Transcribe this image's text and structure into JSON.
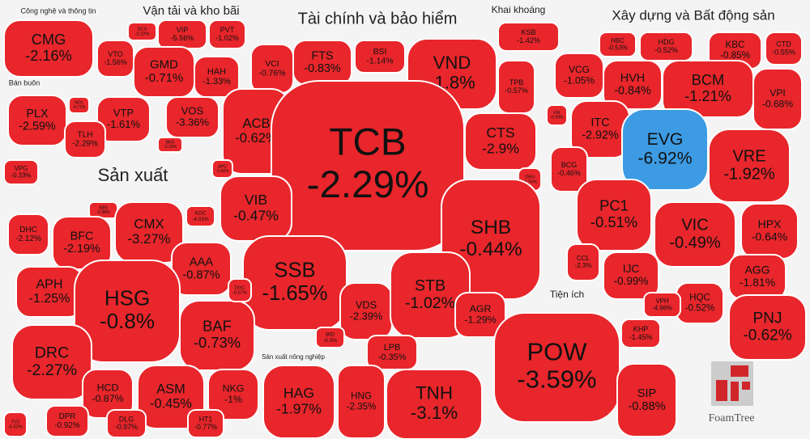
{
  "groups": [
    {
      "title": "Công nghệ và thông tin",
      "cells": [
        {
          "ticker": "CMG",
          "change": "-2.16%"
        }
      ]
    },
    {
      "title": "Vận tải và kho bãi",
      "cells": [
        {
          "ticker": "SCS",
          "change": "-2.22%"
        },
        {
          "ticker": "VIP",
          "change": "-5.56%"
        },
        {
          "ticker": "PVT",
          "change": "-1.02%"
        },
        {
          "ticker": "VTO",
          "change": "-1.56%"
        },
        {
          "ticker": "GMD",
          "change": "-0.71%"
        },
        {
          "ticker": "HAH",
          "change": "-1.33%"
        },
        {
          "ticker": "VTP",
          "change": "-1.61%"
        },
        {
          "ticker": "VOS",
          "change": "-3.36%"
        },
        {
          "ticker": "BKG",
          "change": "-3.16%"
        }
      ]
    },
    {
      "title": "Bán buôn",
      "cells": [
        {
          "ticker": "PLX",
          "change": "-2.59%"
        },
        {
          "ticker": "NO1",
          "change": "-0.71%"
        },
        {
          "ticker": "TLH",
          "change": "-2.29%"
        },
        {
          "ticker": "VPG",
          "change": "-0.33%"
        }
      ]
    },
    {
      "title": "Tài chính và bảo hiểm",
      "cells": [
        {
          "ticker": "VCI",
          "change": "-0.76%"
        },
        {
          "ticker": "FTS",
          "change": "-0.83%"
        },
        {
          "ticker": "BSI",
          "change": "-1.14%"
        },
        {
          "ticker": "VND",
          "change": "-1.8%"
        },
        {
          "ticker": "TPB",
          "change": "-0.57%"
        },
        {
          "ticker": "ACB",
          "change": "-0.62%"
        },
        {
          "ticker": "TCB",
          "change": "-2.29%"
        },
        {
          "ticker": "CTS",
          "change": "-2.9%"
        },
        {
          "ticker": "APG",
          "change": "-3.66%"
        },
        {
          "ticker": "ORS",
          "change": "-0.76%"
        },
        {
          "ticker": "VIB",
          "change": "-0.47%"
        },
        {
          "ticker": "SHB",
          "change": "-0.44%"
        },
        {
          "ticker": "SSB",
          "change": "-1.65%"
        },
        {
          "ticker": "VDS",
          "change": "-2.39%"
        },
        {
          "ticker": "STB",
          "change": "-1.02%"
        },
        {
          "ticker": "AGR",
          "change": "-1.29%"
        },
        {
          "ticker": "BID",
          "change": "-0.3%"
        },
        {
          "ticker": "LPB",
          "change": "-0.35%"
        }
      ]
    },
    {
      "title": "Khai khoáng",
      "cells": [
        {
          "ticker": "KSB",
          "change": "-1.42%"
        }
      ]
    },
    {
      "title": "Xây dựng và Bất động sản",
      "cells": [
        {
          "ticker": "HBC",
          "change": "-0.53%"
        },
        {
          "ticker": "HDG",
          "change": "-0.52%"
        },
        {
          "ticker": "KBC",
          "change": "-0.85%"
        },
        {
          "ticker": "CTD",
          "change": "-0.55%"
        },
        {
          "ticker": "VCG",
          "change": "-1.05%"
        },
        {
          "ticker": "HVH",
          "change": "-0.84%"
        },
        {
          "ticker": "BCM",
          "change": "-1.21%"
        },
        {
          "ticker": "VPI",
          "change": "-0.68%"
        },
        {
          "ticker": "FIR",
          "change": "-0.99%"
        },
        {
          "ticker": "ITC",
          "change": "-2.92%"
        },
        {
          "ticker": "EVG",
          "change": "-6.92%"
        },
        {
          "ticker": "VRE",
          "change": "-1.92%"
        },
        {
          "ticker": "BCG",
          "change": "-0.46%"
        },
        {
          "ticker": "PC1",
          "change": "-0.51%"
        },
        {
          "ticker": "VIC",
          "change": "-0.49%"
        },
        {
          "ticker": "HPX",
          "change": "-0.64%"
        },
        {
          "ticker": "CCL",
          "change": "-2.3%"
        },
        {
          "ticker": "IJC",
          "change": "-0.99%"
        },
        {
          "ticker": "AGG",
          "change": "-1.81%"
        },
        {
          "ticker": "HQC",
          "change": "-0.52%"
        },
        {
          "ticker": "VPH",
          "change": "-4.96%"
        }
      ]
    },
    {
      "title": "Sản xuất",
      "cells": [
        {
          "ticker": "ABS",
          "change": "-0.38%"
        },
        {
          "ticker": "DHC",
          "change": "-2.12%"
        },
        {
          "ticker": "BFC",
          "change": "-2.19%"
        },
        {
          "ticker": "CMX",
          "change": "-3.27%"
        },
        {
          "ticker": "KDC",
          "change": "-4.01%"
        },
        {
          "ticker": "AAA",
          "change": "-0.87%"
        },
        {
          "ticker": "APH",
          "change": "-1.25%"
        },
        {
          "ticker": "HSG",
          "change": "-0.8%"
        },
        {
          "ticker": "BAF",
          "change": "-0.73%"
        },
        {
          "ticker": "DGC",
          "change": "-0.57%"
        },
        {
          "ticker": "DRC",
          "change": "-2.27%"
        },
        {
          "ticker": "HCD",
          "change": "-0.87%"
        },
        {
          "ticker": "ASM",
          "change": "-0.45%"
        },
        {
          "ticker": "NKG",
          "change": "-1%"
        },
        {
          "ticker": "DPR",
          "change": "-0.92%"
        },
        {
          "ticker": "DLG",
          "change": "-0.97%"
        },
        {
          "ticker": "HT1",
          "change": "-0.77%"
        },
        {
          "ticker": "TV2",
          "change": "-5.52%"
        }
      ]
    },
    {
      "title": "Sản xuất nông nghiệp",
      "cells": [
        {
          "ticker": "HAG",
          "change": "-1.97%"
        },
        {
          "ticker": "HNG",
          "change": "-2.35%"
        }
      ]
    },
    {
      "cells": [
        {
          "ticker": "TNH",
          "change": "-3.1%"
        }
      ]
    },
    {
      "title": "Tiện ích",
      "cells": [
        {
          "ticker": "POW",
          "change": "-3.59%"
        },
        {
          "ticker": "KHP",
          "change": "-1.45%"
        },
        {
          "ticker": "SIP",
          "change": "-0.88%"
        }
      ]
    },
    {
      "cells": [
        {
          "ticker": "PNJ",
          "change": "-0.62%"
        }
      ]
    }
  ],
  "logo": "FoamTree"
}
